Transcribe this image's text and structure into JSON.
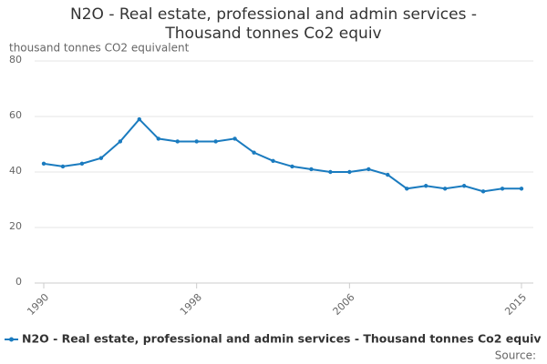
{
  "chart_data": {
    "type": "line",
    "title": "N2O - Real estate, professional and admin services - Thousand tonnes Co2 equiv",
    "y_label": "thousand tonnes CO2 equivalent",
    "x": [
      1990,
      1991,
      1992,
      1993,
      1994,
      1995,
      1996,
      1997,
      1998,
      1999,
      2000,
      2001,
      2002,
      2003,
      2004,
      2005,
      2006,
      2007,
      2008,
      2009,
      2010,
      2011,
      2012,
      2013,
      2014,
      2015
    ],
    "series": [
      {
        "name": "N2O - Real estate, professional and admin services - Thousand tonnes Co2 equiv",
        "color": "#1a7bbf",
        "values": [
          43,
          42,
          43,
          45,
          51,
          59,
          52,
          51,
          51,
          51,
          52,
          47,
          44,
          42,
          41,
          40,
          40,
          41,
          39,
          34,
          35,
          34,
          35,
          33,
          34,
          34
        ]
      }
    ],
    "xlim": [
      1990,
      2015
    ],
    "xticks": [
      1990,
      1998,
      2006,
      2015
    ],
    "ylim": [
      0,
      80
    ],
    "yticks": [
      0,
      20,
      40,
      60,
      80
    ],
    "grid": true,
    "legend": "bottom",
    "source": "Source:"
  }
}
